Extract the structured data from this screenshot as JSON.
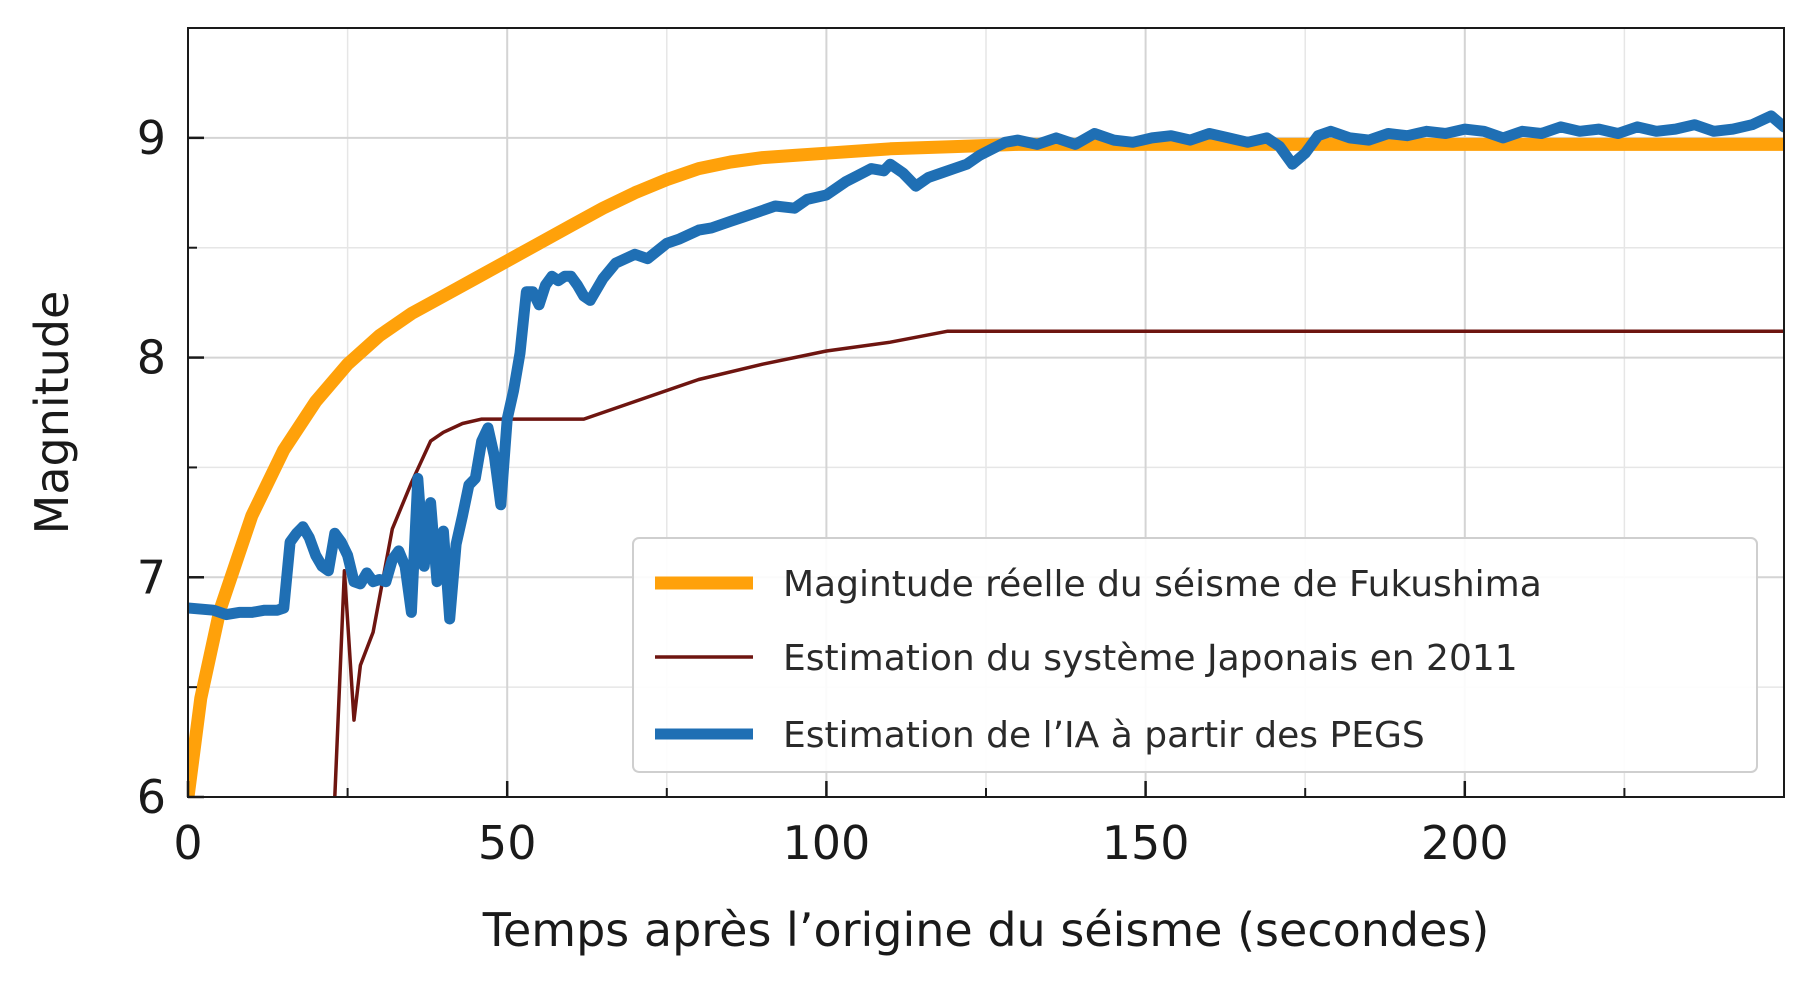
{
  "chart_data": {
    "type": "line",
    "xlabel": "Temps après l’origine du séisme (secondes)",
    "ylabel": "Magnitude",
    "xlim": [
      0,
      250
    ],
    "ylim": [
      6,
      9.5
    ],
    "x_ticks": [
      0,
      50,
      100,
      150,
      200
    ],
    "y_ticks": [
      6,
      7,
      8,
      9
    ],
    "grid": true,
    "legend_position": "bottom-right",
    "series": [
      {
        "name": "Magintude réelle du séisme de Fukushima",
        "color": "#ffa10a",
        "x": [
          0,
          2,
          5,
          10,
          15,
          20,
          25,
          30,
          35,
          40,
          45,
          50,
          55,
          60,
          65,
          70,
          75,
          80,
          85,
          90,
          95,
          100,
          110,
          120,
          130,
          140,
          150,
          175,
          200,
          225,
          250
        ],
        "y": [
          6.0,
          6.45,
          6.85,
          7.28,
          7.58,
          7.8,
          7.97,
          8.1,
          8.2,
          8.28,
          8.36,
          8.44,
          8.52,
          8.6,
          8.68,
          8.75,
          8.81,
          8.86,
          8.89,
          8.91,
          8.92,
          8.93,
          8.95,
          8.96,
          8.97,
          8.97,
          8.97,
          8.97,
          8.97,
          8.97,
          8.97
        ]
      },
      {
        "name": "Estimation du système Japonais en 2011",
        "color": "#6e1510",
        "x": [
          23,
          24.5,
          26,
          27,
          29,
          32,
          35,
          38,
          40,
          43,
          46,
          50,
          55,
          62,
          70,
          80,
          90,
          100,
          110,
          119,
          130,
          150,
          200,
          250
        ],
        "y": [
          6.0,
          7.03,
          6.35,
          6.6,
          6.75,
          7.22,
          7.43,
          7.62,
          7.66,
          7.7,
          7.72,
          7.72,
          7.72,
          7.72,
          7.8,
          7.9,
          7.97,
          8.03,
          8.07,
          8.12,
          8.12,
          8.12,
          8.12,
          8.12
        ]
      },
      {
        "name": "Estimation de l’IA à partir des PEGS",
        "color": "#1f6fb4",
        "x": [
          0,
          4,
          6,
          8,
          10,
          12,
          14,
          15,
          16,
          17,
          18,
          19,
          20,
          21,
          22,
          23,
          24,
          25,
          26,
          27,
          28,
          29,
          30,
          31,
          32,
          33,
          34,
          35,
          36,
          37,
          38,
          39,
          40,
          41,
          42,
          43,
          44,
          45,
          46,
          47,
          48,
          49,
          50,
          51,
          52,
          53,
          54,
          55,
          56,
          57,
          58,
          59,
          60,
          61,
          62,
          63,
          65,
          67,
          70,
          72,
          75,
          77,
          80,
          82,
          85,
          87,
          90,
          92,
          95,
          97,
          100,
          103,
          105,
          107,
          109,
          110,
          112,
          114,
          116,
          118,
          120,
          122,
          124,
          126,
          128,
          130,
          133,
          136,
          139,
          142,
          145,
          148,
          151,
          154,
          157,
          160,
          163,
          166,
          169,
          171,
          173,
          175,
          177,
          179,
          182,
          185,
          188,
          191,
          194,
          197,
          200,
          203,
          206,
          209,
          212,
          215,
          218,
          221,
          224,
          227,
          230,
          233,
          236,
          239,
          242,
          245,
          248,
          250
        ],
        "y": [
          6.86,
          6.85,
          6.83,
          6.84,
          6.84,
          6.85,
          6.85,
          6.86,
          7.16,
          7.2,
          7.23,
          7.18,
          7.1,
          7.05,
          7.03,
          7.2,
          7.16,
          7.1,
          6.98,
          6.97,
          7.02,
          6.98,
          6.99,
          6.98,
          7.08,
          7.12,
          7.05,
          6.84,
          7.45,
          7.05,
          7.34,
          6.98,
          7.21,
          6.81,
          7.15,
          7.28,
          7.42,
          7.45,
          7.62,
          7.68,
          7.55,
          7.33,
          7.72,
          7.85,
          8.02,
          8.3,
          8.3,
          8.24,
          8.33,
          8.37,
          8.35,
          8.37,
          8.37,
          8.33,
          8.28,
          8.26,
          8.36,
          8.43,
          8.47,
          8.45,
          8.52,
          8.54,
          8.58,
          8.59,
          8.62,
          8.64,
          8.67,
          8.69,
          8.68,
          8.72,
          8.74,
          8.8,
          8.83,
          8.86,
          8.85,
          8.88,
          8.84,
          8.78,
          8.82,
          8.84,
          8.86,
          8.88,
          8.92,
          8.95,
          8.98,
          8.99,
          8.97,
          9.0,
          8.97,
          9.02,
          8.99,
          8.98,
          9.0,
          9.01,
          8.99,
          9.02,
          9.0,
          8.98,
          9.0,
          8.96,
          8.88,
          8.93,
          9.01,
          9.03,
          9.0,
          8.99,
          9.02,
          9.01,
          9.03,
          9.02,
          9.04,
          9.03,
          9.0,
          9.03,
          9.02,
          9.05,
          9.03,
          9.04,
          9.02,
          9.05,
          9.03,
          9.04,
          9.06,
          9.03,
          9.04,
          9.06,
          9.1,
          9.05
        ]
      }
    ]
  }
}
